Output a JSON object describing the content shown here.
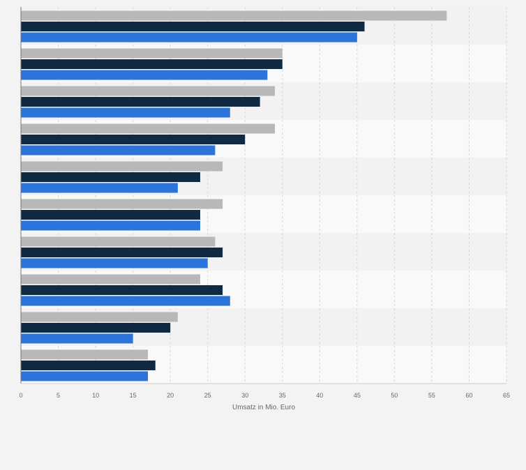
{
  "chart_data": {
    "type": "bar",
    "orientation": "horizontal",
    "title": "",
    "xlabel": "Umsatz in Mio. Euro",
    "ylabel": "",
    "xlim": [
      0,
      65
    ],
    "ticks": [
      0,
      5,
      10,
      15,
      20,
      25,
      30,
      35,
      40,
      45,
      50,
      55,
      60,
      65
    ],
    "grid": true,
    "legend": "none",
    "group_count": 10,
    "series": [
      {
        "color": "#b8b8b8",
        "values": [
          57,
          35,
          34,
          34,
          27,
          27,
          26,
          24,
          21,
          17
        ]
      },
      {
        "color": "#102a44",
        "values": [
          46,
          35,
          32,
          30,
          24,
          24,
          27,
          27,
          20,
          18
        ]
      },
      {
        "color": "#2a74dc",
        "values": [
          45,
          33,
          28,
          26,
          21,
          24,
          25,
          28,
          15,
          17
        ]
      }
    ]
  }
}
